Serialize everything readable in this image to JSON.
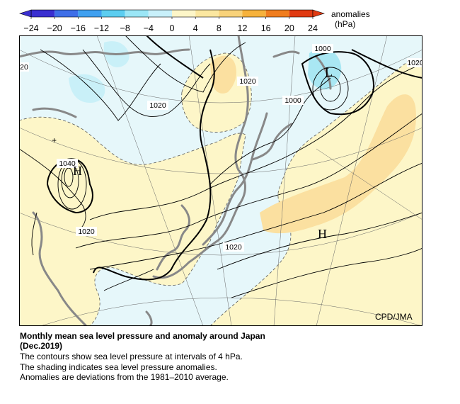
{
  "colorbar": {
    "units_label": "anomalies",
    "units_sub": "(hPa)",
    "ticks": [
      "−24",
      "−20",
      "−16",
      "−12",
      "−8",
      "−4",
      "0",
      "4",
      "8",
      "12",
      "16",
      "20",
      "24"
    ],
    "colors": [
      "#3a2fd0",
      "#3f6fe8",
      "#3fa0f0",
      "#5ccdf0",
      "#9be6f6",
      "#c8f0fa",
      "#fdf6c8",
      "#fbe7a0",
      "#f8d27a",
      "#f6b23c",
      "#f07d1e",
      "#e03a12"
    ]
  },
  "map": {
    "contour_labels": [
      "1000",
      "1020",
      "1020",
      "1000",
      "1020",
      "20",
      "1040",
      "1020",
      "1020",
      "1020"
    ],
    "pressure_centers": [
      "L",
      "H",
      "H"
    ],
    "credit": "CPD/JMA"
  },
  "caption": {
    "title_line1": "Monthly mean sea level pressure and anomaly around Japan",
    "title_line2": "(Dec.2019)",
    "line3": "The contours show sea level pressure at intervals of 4 hPa.",
    "line4": "The shading indicates sea level pressure anomalies.",
    "line5": "Anomalies are deviations from the 1981–2010 average."
  }
}
